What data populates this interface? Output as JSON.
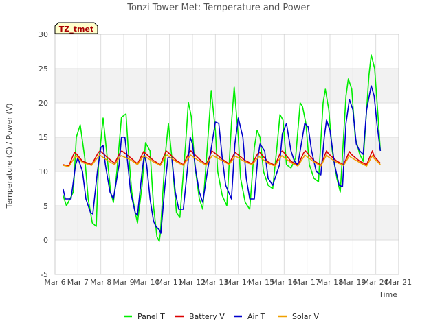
{
  "chart_data": {
    "type": "line",
    "title": "Tonzi Tower Met: Temperature and Power",
    "xlabel": "Time",
    "ylabel": "Temperature (C) / Power (V)",
    "site_tag": "TZ_tmet",
    "xlim": [
      6,
      21
    ],
    "ylim": [
      -5,
      30
    ],
    "x_ticks": [
      6,
      7,
      8,
      9,
      10,
      11,
      12,
      13,
      14,
      15,
      16,
      17,
      18,
      19,
      20,
      21
    ],
    "x_tick_labels": [
      "Mar 6",
      "Mar 7",
      "Mar 8",
      "Mar 9",
      "Mar 10",
      "Mar 11",
      "Mar 12",
      "Mar 13",
      "Mar 14",
      "Mar 15",
      "Mar 16",
      "Mar 17",
      "Mar 18",
      "Mar 19",
      "Mar 20",
      "Mar 21"
    ],
    "y_ticks": [
      -5,
      0,
      5,
      10,
      15,
      20,
      25,
      30
    ],
    "y_tick_labels": [
      "-5",
      "0",
      "5",
      "10",
      "15",
      "20",
      "25",
      "30"
    ],
    "legend_placement": "bottom",
    "series": [
      {
        "name": "Panel T",
        "color": "#00ee00",
        "x": [
          6.35,
          6.5,
          6.8,
          6.93,
          7.1,
          7.3,
          7.45,
          7.63,
          7.8,
          7.9,
          8.1,
          8.25,
          8.43,
          8.55,
          8.7,
          8.9,
          9.1,
          9.2,
          9.35,
          9.5,
          9.6,
          9.8,
          9.95,
          10.15,
          10.3,
          10.45,
          10.55,
          10.6,
          10.8,
          10.95,
          11.1,
          11.3,
          11.45,
          11.7,
          11.82,
          11.95,
          12.1,
          12.3,
          12.45,
          12.7,
          12.82,
          13.0,
          13.1,
          13.3,
          13.5,
          13.7,
          13.82,
          14.0,
          14.1,
          14.3,
          14.5,
          14.7,
          14.82,
          14.95,
          15.1,
          15.3,
          15.5,
          15.7,
          15.82,
          15.95,
          16.1,
          16.3,
          16.5,
          16.7,
          16.8,
          16.95,
          17.1,
          17.3,
          17.5,
          17.7,
          17.8,
          17.95,
          18.1,
          18.3,
          18.45,
          18.7,
          18.8,
          18.95,
          19.1,
          19.3,
          19.45,
          19.7,
          19.8,
          19.95,
          20.1,
          20.2
        ],
        "y": [
          6.5,
          5,
          7,
          15,
          16.8,
          12,
          6,
          2.5,
          2,
          11,
          17.8,
          13,
          7,
          5.5,
          10,
          17.9,
          18.4,
          13,
          7,
          4,
          2.5,
          8,
          14.2,
          13,
          5,
          0.5,
          -0.2,
          1,
          12,
          17,
          12,
          4,
          3.3,
          14,
          20.1,
          18,
          11,
          6,
          4.5,
          16,
          21.8,
          16,
          10,
          6.5,
          5,
          17,
          22.3,
          15,
          9,
          5.5,
          4.5,
          13.5,
          16,
          15,
          10,
          8,
          7.5,
          14,
          18.3,
          17.5,
          11,
          10.5,
          12,
          20,
          19.5,
          17,
          11,
          9,
          8.5,
          20,
          22,
          19,
          13,
          9,
          7,
          21,
          23.5,
          22,
          15,
          12.5,
          11.5,
          24,
          27,
          25,
          18,
          13
        ]
      },
      {
        "name": "Battery V",
        "color": "#dd0000",
        "x": [
          6.35,
          6.6,
          6.85,
          6.95,
          7.2,
          7.6,
          7.9,
          7.97,
          8.3,
          8.6,
          8.85,
          8.92,
          9.3,
          9.6,
          9.87,
          9.93,
          10.3,
          10.6,
          10.85,
          10.93,
          11.3,
          11.6,
          11.87,
          11.93,
          12.3,
          12.6,
          12.85,
          12.93,
          13.3,
          13.6,
          13.85,
          13.93,
          14.3,
          14.6,
          14.85,
          14.93,
          15.3,
          15.6,
          15.85,
          15.93,
          16.3,
          16.6,
          16.85,
          16.93,
          17.3,
          17.6,
          17.85,
          17.93,
          18.3,
          18.6,
          18.85,
          18.93,
          19.3,
          19.6,
          19.85,
          19.93,
          20.2
        ],
        "y": [
          11,
          10.8,
          12.8,
          12.5,
          11.5,
          11,
          12.8,
          13,
          12,
          11.2,
          12.8,
          13,
          12,
          11.1,
          12.9,
          12.7,
          11.6,
          11,
          13,
          12.8,
          11.6,
          11,
          12.9,
          13,
          11.8,
          11,
          13,
          12.8,
          11.8,
          11.1,
          12.8,
          12.6,
          11.6,
          11.1,
          12.6,
          12.8,
          11.4,
          10.9,
          12.8,
          13,
          11.5,
          10.9,
          12.7,
          13,
          11.6,
          10.9,
          13,
          12.6,
          11.5,
          11,
          12.9,
          12.5,
          11.5,
          11,
          13,
          12.2,
          11.2
        ]
      },
      {
        "name": "Air T",
        "color": "#0000cc",
        "x": [
          6.35,
          6.45,
          6.7,
          6.9,
          7.0,
          7.2,
          7.35,
          7.55,
          7.65,
          7.85,
          8.0,
          8.1,
          8.2,
          8.4,
          8.55,
          8.8,
          8.9,
          9.05,
          9.15,
          9.3,
          9.5,
          9.6,
          9.8,
          9.9,
          10.0,
          10.15,
          10.3,
          10.4,
          10.55,
          10.62,
          10.8,
          10.93,
          11.1,
          11.25,
          11.4,
          11.6,
          11.8,
          11.9,
          12.0,
          12.15,
          12.3,
          12.45,
          12.65,
          12.85,
          13.0,
          13.15,
          13.3,
          13.45,
          13.7,
          13.85,
          14.0,
          14.2,
          14.35,
          14.5,
          14.7,
          14.85,
          14.95,
          15.15,
          15.3,
          15.5,
          15.8,
          15.92,
          16.1,
          16.3,
          16.45,
          16.6,
          16.75,
          16.9,
          17.05,
          17.2,
          17.4,
          17.6,
          17.75,
          17.85,
          18.0,
          18.2,
          18.4,
          18.55,
          18.7,
          18.85,
          19.0,
          19.15,
          19.3,
          19.45,
          19.6,
          19.8,
          19.93,
          20.05,
          20.2
        ],
        "y": [
          7.5,
          6,
          6,
          11,
          12,
          10,
          6,
          4,
          3.8,
          10,
          13.5,
          13.8,
          11,
          7,
          6,
          11,
          15,
          15,
          12,
          7,
          4,
          3.6,
          10,
          12.5,
          11,
          6,
          2.8,
          2,
          1.5,
          1,
          8,
          12,
          12,
          7,
          4.5,
          4.5,
          11,
          15,
          14,
          10,
          7,
          5.5,
          10,
          14,
          17.2,
          17,
          12,
          8,
          6,
          14,
          17.8,
          15,
          9,
          6,
          6,
          12,
          14,
          13,
          9,
          8,
          11,
          15.5,
          17,
          13,
          11.5,
          11,
          14,
          17,
          16.5,
          13,
          10,
          9.5,
          15,
          17.5,
          16,
          11,
          8,
          7.8,
          17,
          20.5,
          19,
          14,
          13,
          12.5,
          19,
          22.5,
          21,
          17,
          13
        ]
      },
      {
        "name": "Solar V",
        "color": "#f0a000",
        "x": [
          6.35,
          6.6,
          6.85,
          6.92,
          7.2,
          7.6,
          7.9,
          7.95,
          8.3,
          8.6,
          8.85,
          8.9,
          9.3,
          9.6,
          9.87,
          9.92,
          10.3,
          10.6,
          10.85,
          10.9,
          11.3,
          11.6,
          11.87,
          11.92,
          12.3,
          12.6,
          12.85,
          12.9,
          13.3,
          13.6,
          13.85,
          13.9,
          14.3,
          14.6,
          14.85,
          14.9,
          15.3,
          15.6,
          15.85,
          15.9,
          16.3,
          16.6,
          16.85,
          16.9,
          17.3,
          17.6,
          17.85,
          17.9,
          18.3,
          18.6,
          18.85,
          18.9,
          19.3,
          19.6,
          19.85,
          19.9,
          20.2
        ],
        "y": [
          10.9,
          10.7,
          12,
          12.3,
          11.3,
          10.9,
          12.2,
          12.4,
          11.6,
          11,
          12.2,
          12.3,
          11.7,
          11,
          12.3,
          12.2,
          11.4,
          10.9,
          12.3,
          12.4,
          11.4,
          10.9,
          12.2,
          12.4,
          11.5,
          10.9,
          12.3,
          12.3,
          11.6,
          11,
          12.2,
          12.2,
          11.4,
          11,
          12,
          12.2,
          11.2,
          10.8,
          12.1,
          12.3,
          11.3,
          10.8,
          12.1,
          12.4,
          11.4,
          10.8,
          12.4,
          12.2,
          11.3,
          10.9,
          12.3,
          12.1,
          11.3,
          10.8,
          12.3,
          12,
          11
        ]
      }
    ]
  }
}
